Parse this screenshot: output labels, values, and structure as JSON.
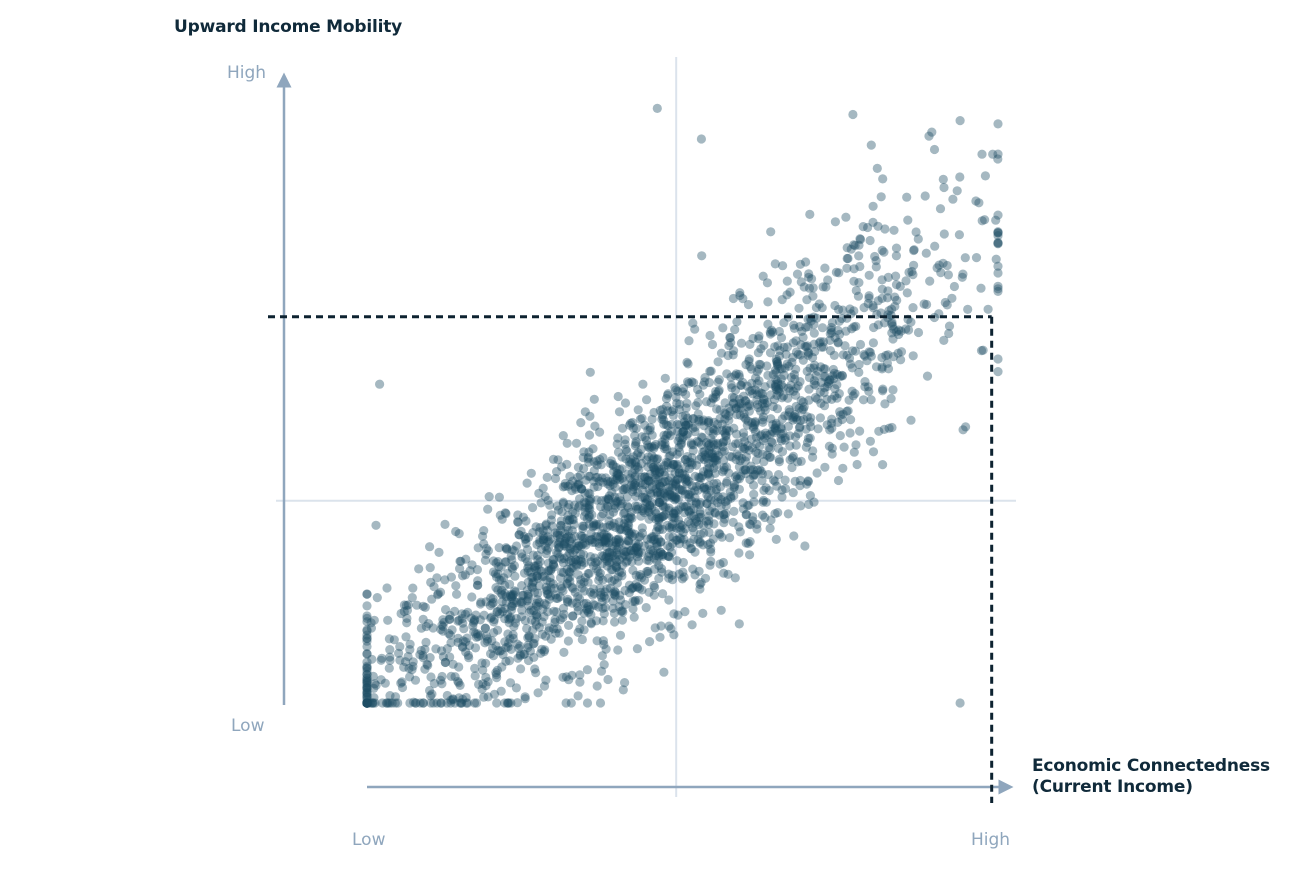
{
  "chart_data": {
    "type": "scatter",
    "title": "Upward Income Mobility",
    "xlabel": "Economic Connectedness",
    "xlabel_sub": "(Current Income)",
    "y_low_label": "Low",
    "y_high_label": "High",
    "x_low_label": "Low",
    "x_high_label": "High",
    "xlim": [
      0,
      1
    ],
    "ylim": [
      0,
      1
    ],
    "median_lines": {
      "x": 0.49,
      "y": 0.33
    },
    "highlight_threshold": {
      "x": 0.99,
      "y": 0.63
    },
    "grid": false,
    "legend": "none",
    "point_color": "#1f4e63",
    "point_count": 2600,
    "cluster_center": [
      0.45,
      0.28
    ],
    "points_sample": [
      {
        "x": 0.46,
        "y": 0.97
      },
      {
        "x": 0.53,
        "y": 0.92
      },
      {
        "x": 0.77,
        "y": 0.96
      },
      {
        "x": 0.94,
        "y": 0.95
      },
      {
        "x": 0.02,
        "y": 0.52
      },
      {
        "x": 0.94,
        "y": 0.0
      },
      {
        "x": 0.37,
        "y": 0.0
      },
      {
        "x": 0.0,
        "y": 0.01
      },
      {
        "x": 0.45,
        "y": 0.34
      },
      {
        "x": 0.3,
        "y": 0.26
      },
      {
        "x": 0.2,
        "y": 0.17
      },
      {
        "x": 0.6,
        "y": 0.38
      },
      {
        "x": 0.82,
        "y": 0.62
      },
      {
        "x": 0.7,
        "y": 0.7
      }
    ]
  },
  "colors": {
    "axis": "#8fa6bd",
    "median": "#dbe3ec",
    "threshold": "#0d2230",
    "title": "#102a3a"
  }
}
